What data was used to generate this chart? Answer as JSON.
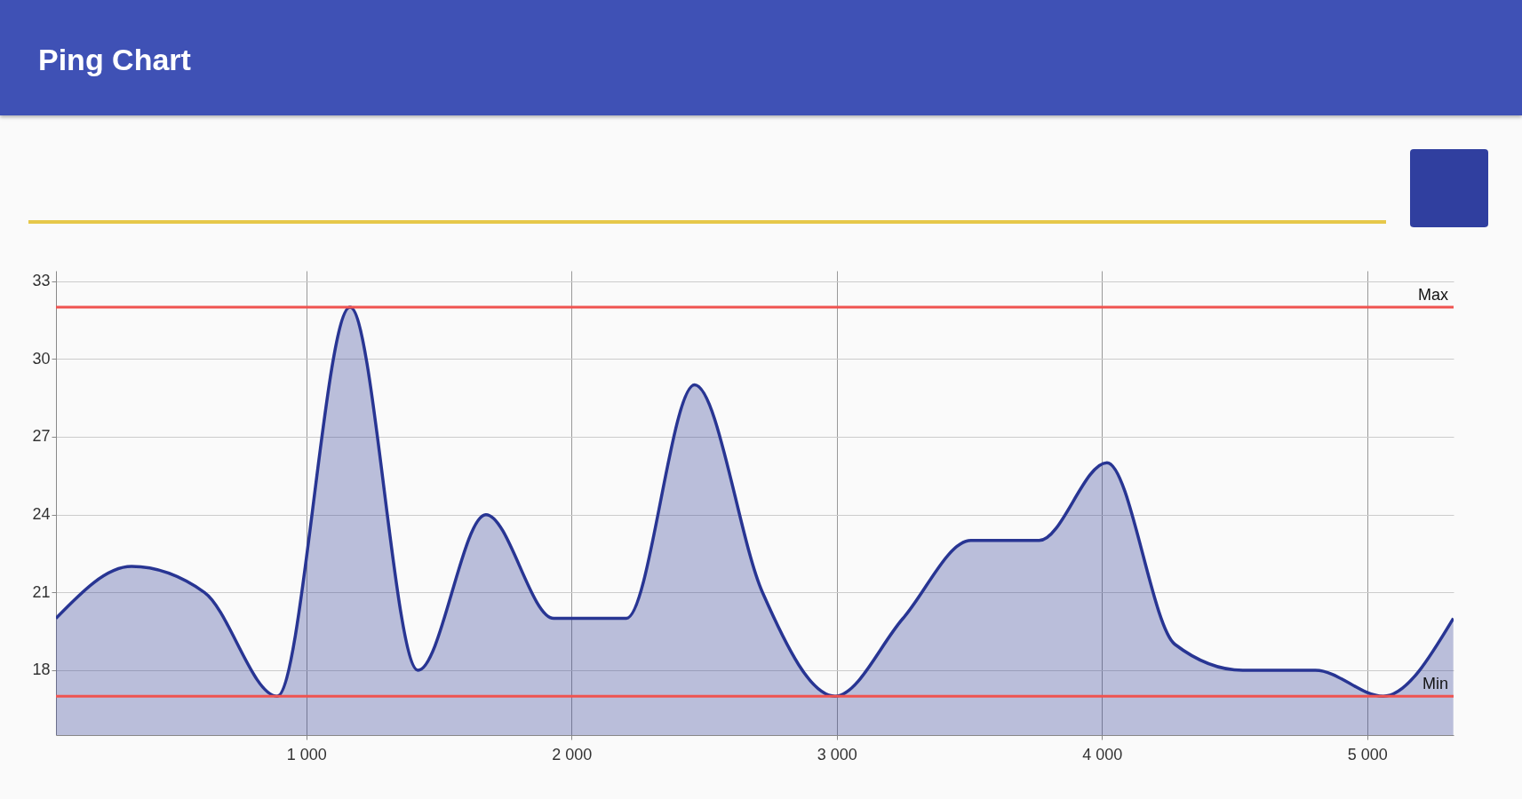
{
  "chart_data": {
    "type": "area",
    "title": "Ping Chart",
    "x": [
      56,
      341,
      616,
      890,
      1165,
      1421,
      1677,
      1933,
      2207,
      2464,
      2720,
      2994,
      3250,
      3506,
      3763,
      4019,
      4275,
      4531,
      4805,
      5061,
      5325
    ],
    "series": [
      {
        "color": "#283593",
        "values": [
          20,
          22,
          21,
          17,
          32,
          18,
          24,
          20,
          20,
          29,
          21,
          17,
          20,
          23,
          23,
          26,
          19,
          18,
          18,
          17,
          20
        ]
      }
    ],
    "xlim": [
      56,
      5326
    ],
    "ylim": [
      15.5,
      33.4
    ],
    "xticks": [
      {
        "value": 1000,
        "label": "1 000"
      },
      {
        "value": 2000,
        "label": "2 000"
      },
      {
        "value": 3000,
        "label": "3 000"
      },
      {
        "value": 4000,
        "label": "4 000"
      },
      {
        "value": 5000,
        "label": "5 000"
      }
    ],
    "yticks": [
      18,
      21,
      24,
      27,
      30,
      33
    ],
    "ref_lines": [
      {
        "axis": "y",
        "value": 32,
        "label": "Max",
        "color": "#ef5350"
      },
      {
        "axis": "y",
        "value": 17,
        "label": "Min",
        "color": "#ef5350"
      }
    ],
    "grid": true
  }
}
